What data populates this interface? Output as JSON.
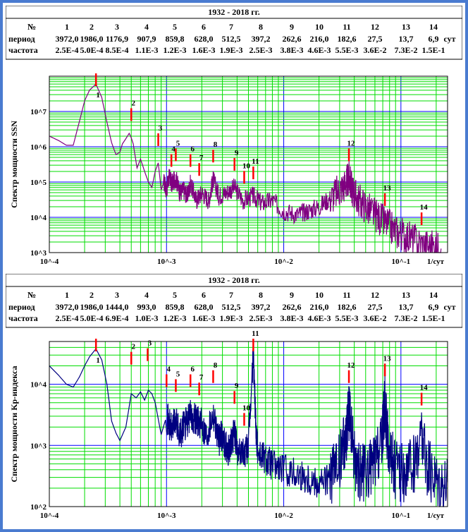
{
  "panels": [
    {
      "id": "ssn",
      "title": "1932 - 2018 гг.",
      "table": {
        "row_labels": {
          "num": "№",
          "period": "период",
          "freq": "частота",
          "unit": "сут"
        },
        "numbers": [
          "1",
          "2",
          "3",
          "4",
          "5",
          "6",
          "7",
          "8",
          "9",
          "10",
          "11",
          "12",
          "13",
          "14"
        ],
        "periods": [
          "3972,0",
          "1986,0",
          "1176,9",
          "907,9",
          "859,8",
          "628,0",
          "512,5",
          "397,2",
          "262,6",
          "216,0",
          "182,6",
          "27,5",
          "13,7",
          "6,9"
        ],
        "frequencies": [
          "2.5E-4",
          "5.0E-4",
          "8.5E-4",
          "1.1E-3",
          "1.2E-3",
          "1.6E-3",
          "1.9E-3",
          "2.5E-3",
          "3.8E-3",
          "4.6E-3",
          "5.5E-3",
          "3.6E-2",
          "7.3E-2",
          "1.5E-1"
        ]
      },
      "chart_data": {
        "type": "line",
        "ylabel": "Спектр мощности SSN",
        "xunit": "1/сут",
        "xscale": "log",
        "yscale": "log",
        "xlim": [
          0.0001,
          0.25
        ],
        "ylim": [
          1000,
          100000000
        ],
        "x_tick_labels": [
          "10^-4",
          "10^-3",
          "10^-2",
          "10^-1"
        ],
        "y_tick_labels": [
          "10^3",
          "10^4",
          "10^5",
          "10^6",
          "10^7"
        ],
        "grid": true,
        "line_color": "#800080",
        "series": [
          {
            "x": [
              0.0001,
              0.00012,
              0.00014,
              0.00016,
              0.00018,
              0.0002,
              0.00022,
              0.00025,
              0.00028,
              0.00031,
              0.00034,
              0.00037,
              0.0004,
              0.00042,
              0.00045,
              0.00048,
              0.0005,
              0.00052,
              0.00056,
              0.0006,
              0.00065,
              0.0007,
              0.00075,
              0.0008,
              0.00085,
              0.0009,
              0.00095,
              0.001,
              0.00105,
              0.00111,
              0.0012,
              0.0013,
              0.0014,
              0.0015,
              0.0016,
              0.0018,
              0.002,
              0.0023,
              0.0025,
              0.0028,
              0.0032,
              0.0038,
              0.0045,
              0.0055,
              0.0065,
              0.008,
              0.01,
              0.013,
              0.016,
              0.02,
              0.025,
              0.03,
              0.034,
              0.036,
              0.038,
              0.042,
              0.05,
              0.06,
              0.073,
              0.09,
              0.11,
              0.14,
              0.18,
              0.22
            ],
            "y": [
              2000000,
              1500000,
              1100000,
              1100000,
              5000000,
              20000000,
              40000000,
              60000000,
              25000000,
              5000000,
              1300000,
              600000,
              700000,
              1200000,
              1700000,
              2400000,
              1800000,
              1200000,
              250000,
              450000,
              200000,
              100000,
              70000,
              200000,
              350000,
              60000,
              100000,
              60000,
              140000,
              90000,
              130000,
              50000,
              60000,
              40000,
              90000,
              30000,
              50000,
              30000,
              120000,
              40000,
              50000,
              70000,
              30000,
              40000,
              25000,
              30000,
              15000,
              12000,
              15000,
              20000,
              35000,
              60000,
              90000,
              130000,
              70000,
              35000,
              20000,
              12000,
              7000,
              4000,
              3000,
              2000,
              1500,
              1300
            ]
          }
        ],
        "peaks": [
          {
            "label": "1",
            "x": 0.00025
          },
          {
            "label": "2",
            "x": 0.0005
          },
          {
            "label": "3",
            "x": 0.00085
          },
          {
            "label": "4",
            "x": 0.0011
          },
          {
            "label": "5",
            "x": 0.0012
          },
          {
            "label": "6",
            "x": 0.0016
          },
          {
            "label": "7",
            "x": 0.0019
          },
          {
            "label": "8",
            "x": 0.0025
          },
          {
            "label": "9",
            "x": 0.0038
          },
          {
            "label": "10",
            "x": 0.0046
          },
          {
            "label": "11",
            "x": 0.0055
          },
          {
            "label": "12",
            "x": 0.036
          },
          {
            "label": "13",
            "x": 0.073
          },
          {
            "label": "14",
            "x": 0.15
          }
        ]
      }
    },
    {
      "id": "kp",
      "title": "1932 - 2018 гг.",
      "table": {
        "row_labels": {
          "num": "№",
          "period": "период",
          "freq": "частота",
          "unit": "сут"
        },
        "numbers": [
          "1",
          "2",
          "3",
          "4",
          "5",
          "6",
          "7",
          "8",
          "9",
          "10",
          "11",
          "12",
          "13",
          "14"
        ],
        "periods": [
          "3972,0",
          "1986,0",
          "1444,0",
          "993,0",
          "859,8",
          "628,0",
          "512,5",
          "397,2",
          "262,6",
          "216,0",
          "182,6",
          "27,5",
          "13,7",
          "6,9"
        ],
        "frequencies": [
          "2.5E-4",
          "5.0E-4",
          "6.9E-4",
          "1.0E-3",
          "1.2E-3",
          "1.6E-3",
          "1.9E-3",
          "2.5E-3",
          "3.8E-3",
          "4.6E-3",
          "5.5E-3",
          "3.6E-2",
          "7.3E-2",
          "1.5E-1"
        ]
      },
      "chart_data": {
        "type": "line",
        "ylabel": "Спектр мощности Kp-индекса",
        "xunit": "1/сут",
        "xscale": "log",
        "yscale": "log",
        "xlim": [
          0.0001,
          0.25
        ],
        "ylim": [
          100,
          50000
        ],
        "x_tick_labels": [
          "10^-4",
          "10^-3",
          "10^-2",
          "10^-1"
        ],
        "y_tick_labels": [
          "10^2",
          "10^3",
          "10^4"
        ],
        "grid": true,
        "line_color": "#000080",
        "series": [
          {
            "x": [
              0.0001,
              0.00012,
              0.00014,
              0.00016,
              0.00018,
              0.0002,
              0.00022,
              0.00025,
              0.00028,
              0.00031,
              0.00034,
              0.00037,
              0.0004,
              0.00045,
              0.0005,
              0.00055,
              0.0006,
              0.00065,
              0.0007,
              0.00075,
              0.0008,
              0.0009,
              0.001,
              0.0011,
              0.0012,
              0.0013,
              0.0014,
              0.0016,
              0.0018,
              0.002,
              0.0022,
              0.0025,
              0.0028,
              0.003,
              0.0033,
              0.0036,
              0.0038,
              0.004,
              0.0046,
              0.005,
              0.0055,
              0.0058,
              0.006,
              0.007,
              0.008,
              0.01,
              0.013,
              0.016,
              0.02,
              0.025,
              0.03,
              0.034,
              0.036,
              0.038,
              0.042,
              0.05,
              0.06,
              0.068,
              0.073,
              0.078,
              0.09,
              0.11,
              0.13,
              0.15,
              0.17,
              0.2,
              0.25
            ],
            "y": [
              20000,
              14000,
              10000,
              9000,
              13000,
              20000,
              28000,
              38000,
              25000,
              10000,
              2500,
              1600,
              1200,
              2000,
              7000,
              6000,
              7500,
              5500,
              8000,
              7000,
              5000,
              1500,
              3000,
              1800,
              2500,
              1500,
              2000,
              3000,
              2800,
              2200,
              1500,
              3500,
              1200,
              1500,
              800,
              1100,
              1600,
              900,
              700,
              1000,
              30000,
              2000,
              800,
              600,
              500,
              400,
              350,
              300,
              250,
              300,
              500,
              1500,
              3500,
              1500,
              400,
              350,
              500,
              1000,
              4500,
              1000,
              400,
              350,
              500,
              1500,
              400,
              300,
              250
            ]
          }
        ],
        "peaks": [
          {
            "label": "1",
            "x": 0.00025
          },
          {
            "label": "2",
            "x": 0.0005
          },
          {
            "label": "3",
            "x": 0.00069
          },
          {
            "label": "4",
            "x": 0.001
          },
          {
            "label": "5",
            "x": 0.0012
          },
          {
            "label": "6",
            "x": 0.0016
          },
          {
            "label": "7",
            "x": 0.0019
          },
          {
            "label": "8",
            "x": 0.0025
          },
          {
            "label": "9",
            "x": 0.0038
          },
          {
            "label": "10",
            "x": 0.0046
          },
          {
            "label": "11",
            "x": 0.0055
          },
          {
            "label": "12",
            "x": 0.036
          },
          {
            "label": "13",
            "x": 0.073
          },
          {
            "label": "14",
            "x": 0.15
          }
        ]
      }
    }
  ]
}
